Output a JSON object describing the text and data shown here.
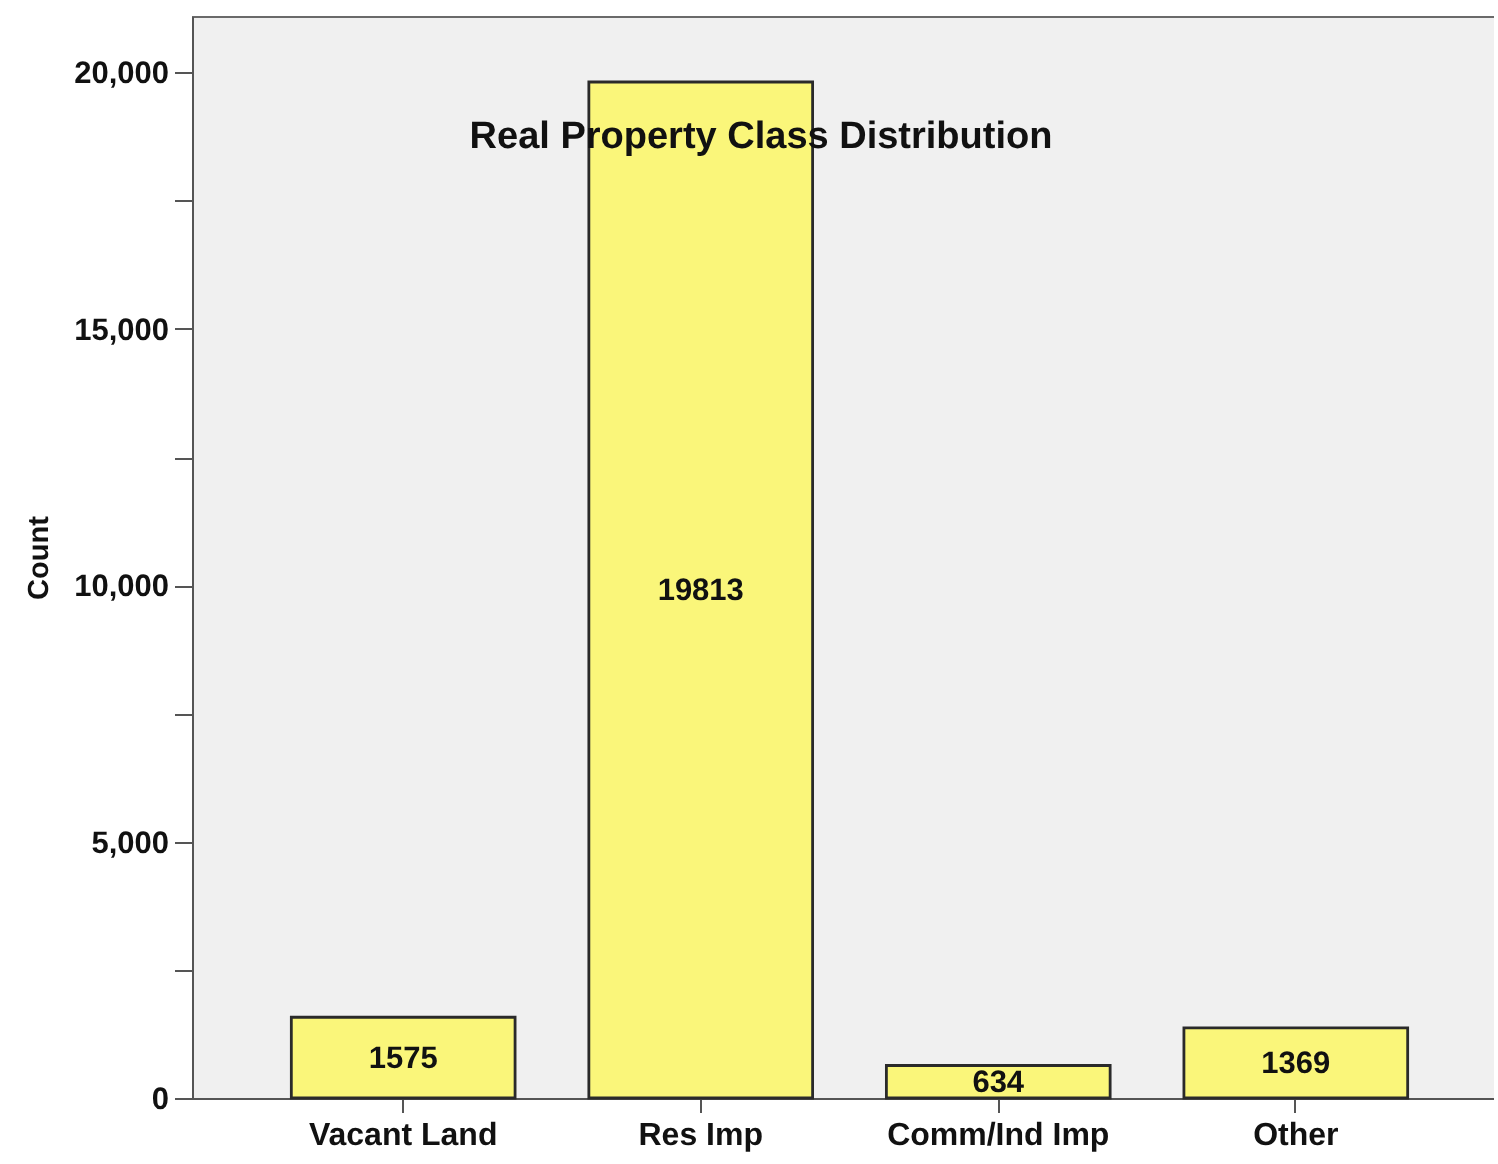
{
  "chart_data": {
    "type": "bar",
    "title": "Real Property Class Distribution",
    "ylabel": "Count",
    "categories": [
      "Vacant Land",
      "Res Imp",
      "Comm/Ind Imp",
      "Other"
    ],
    "values": [
      1575,
      19813,
      634,
      1369
    ],
    "color": "#faf67a",
    "data_labels": true,
    "grid": false,
    "ylim": [
      0,
      21100
    ],
    "yticks": [
      0,
      {
        "value": 2500,
        "label": null
      },
      {
        "value": 5000,
        "label": "5,000"
      },
      {
        "value": 7500,
        "label": null
      },
      {
        "value": 10000,
        "label": "10,000"
      },
      {
        "value": 12500,
        "label": null
      },
      {
        "value": 15000,
        "label": "15,000"
      },
      {
        "value": 17500,
        "label": null
      },
      {
        "value": 20000,
        "label": "20,000"
      }
    ]
  }
}
